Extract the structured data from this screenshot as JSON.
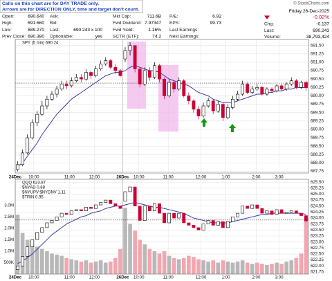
{
  "header": {
    "note": [
      "Calls on this chart are for DAY TRADE only.",
      "Arrows are for DIRECTION ONLY, time and target don't count."
    ],
    "copyright": "© StockCharts.com",
    "columns": [
      [
        {
          "label": "Open:",
          "value": "690.640"
        },
        {
          "label": "High:",
          "value": "691.660"
        },
        {
          "label": "Low:",
          "value": "689.270"
        },
        {
          "label": "Prev Close:",
          "value": "690.380"
        }
      ],
      [
        {
          "label": "Ask:"
        },
        {
          "label": "Bid:"
        },
        {
          "label": "Last:",
          "value": "690.243 x 100"
        },
        {
          "label": "Optionable:",
          "value": "yes"
        }
      ],
      [
        {
          "label": "Mkt Cap:",
          "value": "711.6B"
        },
        {
          "label": "Fwd Dividend:",
          "value": "7.97347"
        },
        {
          "label": "Fwd Yield:",
          "value": "1.16%"
        },
        {
          "label": "SCTR (ETF):",
          "value": "74.2"
        }
      ],
      [
        {
          "label": "P/E:",
          "value": "6.92"
        },
        {
          "label": "EPS:",
          "value": "99.73"
        },
        {
          "label": "Last Earnings:"
        },
        {
          "label": "Next Earnings:"
        }
      ]
    ],
    "date": "Friday 26-Dec-2025",
    "pct_change": "-0.02%",
    "summary": [
      {
        "label": "Chg:",
        "value": "-0.137"
      },
      {
        "label": "Last:",
        "value": "690.243"
      },
      {
        "label": "Volume:",
        "value": "38,793,424"
      }
    ]
  },
  "chart_data": [
    {
      "type": "candlestick",
      "legend": [
        "SPY (5 min) 690.24"
      ],
      "grid": true,
      "up_color": "#000000",
      "down_color": "#cc0033",
      "xlim": [
        -0.5,
        59.5
      ],
      "xticks": [
        {
          "value": -0.5,
          "label": "24Dec"
        },
        {
          "value": 3.3,
          "label": "10:00"
        },
        {
          "value": 10.6,
          "label": "11:00"
        },
        {
          "value": 15.7,
          "label": "12:00"
        },
        {
          "value": 21.5,
          "label": "26Dec"
        },
        {
          "value": 24.8,
          "label": "10:00"
        },
        {
          "value": 30.8,
          "label": "11:00"
        },
        {
          "value": 37.5,
          "label": "12:00"
        },
        {
          "value": 42.6,
          "label": "1:00"
        },
        {
          "value": 48.8,
          "label": "2:00"
        },
        {
          "value": 53.5,
          "label": "3:00"
        }
      ],
      "ylim": [
        687.7,
        691.68
      ],
      "yticks": [
        {
          "value": 691.5,
          "label": "691.50"
        },
        691.25,
        {
          "value": 691,
          "label": "691.00"
        },
        690.75,
        {
          "value": 690.5,
          "label": "690.50"
        },
        690.25,
        {
          "value": 690,
          "label": "690.00"
        },
        689.75,
        {
          "value": 689.5,
          "label": "689.50"
        },
        689.25,
        {
          "value": 689,
          "label": "689.00"
        },
        688.75,
        {
          "value": 688.5,
          "label": "688.50"
        },
        688.25,
        {
          "value": 688,
          "label": "688.00"
        },
        687.75
      ],
      "hline": 690.38,
      "open": [
        687.8,
        687.95,
        688.3,
        688.75,
        689.2,
        689.45,
        689.7,
        689.9,
        690.05,
        690.2,
        690.35,
        690.3,
        690.45,
        690.55,
        690.5,
        690.7,
        690.6,
        690.8,
        690.95,
        691.05,
        690.85,
        690.75,
        691.1,
        691.35,
        691.5,
        690.8,
        690.35,
        690.75,
        690.55,
        690.9,
        690.5,
        690,
        690.4,
        690.2,
        690.45,
        690,
        689.85,
        689.6,
        689.4,
        689.7,
        689.85,
        689.55,
        689.75,
        689.35,
        689.65,
        689.9,
        690.05,
        690.35,
        690.1,
        690.2,
        690.25,
        690.05,
        690.2,
        690.15,
        690.3,
        690.2,
        690.35,
        690.45,
        690.25,
        690.4
      ],
      "high": [
        688.05,
        688.4,
        688.85,
        689.3,
        689.55,
        689.85,
        690,
        690.15,
        690.3,
        690.45,
        690.45,
        690.55,
        690.65,
        690.65,
        690.8,
        690.75,
        690.9,
        691.05,
        691.15,
        691.1,
        690.95,
        690.8,
        691.45,
        691.6,
        691.5,
        690.85,
        690.85,
        690.85,
        691,
        690.95,
        690.55,
        690.5,
        690.45,
        690.55,
        690.5,
        690.1,
        689.9,
        689.7,
        689.8,
        689.95,
        689.9,
        689.85,
        689.8,
        689.75,
        690,
        690.15,
        690.45,
        690.4,
        690.3,
        690.35,
        690.3,
        690.25,
        690.25,
        690.35,
        690.35,
        690.4,
        690.55,
        690.5,
        690.45,
        690.45
      ],
      "low": [
        687.75,
        687.9,
        688.25,
        688.7,
        689.1,
        689.4,
        689.6,
        689.85,
        689.95,
        690.15,
        690.2,
        690.25,
        690.4,
        690.4,
        690.45,
        690.5,
        690.55,
        690.75,
        690.9,
        690.8,
        690.65,
        690.55,
        691,
        691.2,
        690.7,
        690.25,
        690.3,
        690.45,
        690.5,
        690.4,
        689.9,
        689.95,
        690.1,
        690.15,
        689.95,
        689.75,
        689.5,
        689.3,
        689.35,
        689.65,
        689.45,
        689.5,
        689.25,
        689.3,
        689.6,
        689.85,
        690,
        690.05,
        690.05,
        690.15,
        690,
        690,
        690.1,
        690.1,
        690.15,
        690.15,
        690.3,
        690.2,
        690.2,
        690.15
      ],
      "close": [
        687.95,
        688.3,
        688.75,
        689.2,
        689.45,
        689.7,
        689.9,
        690.05,
        690.2,
        690.35,
        690.3,
        690.45,
        690.55,
        690.5,
        690.7,
        690.6,
        690.8,
        690.95,
        691.05,
        690.85,
        690.75,
        690.6,
        691.35,
        691.5,
        690.8,
        690.35,
        690.75,
        690.55,
        690.9,
        690.5,
        690,
        690.4,
        690.2,
        690.45,
        690,
        689.85,
        689.6,
        689.4,
        689.7,
        689.85,
        689.55,
        689.75,
        689.35,
        689.65,
        689.9,
        690.05,
        690.35,
        690.1,
        690.2,
        690.25,
        690.05,
        690.2,
        690.15,
        690.3,
        690.2,
        690.35,
        690.45,
        690.25,
        690.4,
        690.24
      ],
      "ma": {
        "color": "#3a3aa8",
        "values": [
          687.9,
          688.0,
          688.2,
          688.4,
          688.6,
          688.85,
          689.05,
          689.25,
          689.45,
          689.6,
          689.75,
          689.9,
          690.0,
          690.1,
          690.2,
          690.3,
          690.4,
          690.5,
          690.6,
          690.65,
          690.7,
          690.7,
          690.75,
          690.85,
          690.9,
          690.85,
          690.8,
          690.75,
          690.75,
          690.7,
          690.6,
          690.5,
          690.45,
          690.4,
          690.35,
          690.3,
          690.2,
          690.1,
          690.05,
          690.0,
          689.9,
          689.85,
          689.8,
          689.8,
          689.8,
          689.85,
          689.9,
          689.95,
          690.0,
          690.05,
          690.05,
          690.1,
          690.1,
          690.15,
          690.15,
          690.2,
          690.2,
          690.25,
          690.25,
          690.25
        ]
      }
    },
    {
      "type": "candlestick",
      "legend": [
        "QQQ 623.87",
        "$NYAD 0.88",
        "$NYUPV:$NYDNV 1.11",
        "$TRIN 0.95"
      ],
      "grid": true,
      "up_color": "#000000",
      "down_color": "#cc0033",
      "volume_up_color": "#b8b8b8",
      "volume_down_color": "#f2a7b0",
      "xlim": [
        -0.5,
        59.5
      ],
      "xticks": [
        {
          "value": -0.5,
          "label": "24Dec"
        },
        {
          "value": 3.3,
          "label": "10:00"
        },
        {
          "value": 10.6,
          "label": "11:00"
        },
        {
          "value": 15.7,
          "label": "12:00"
        },
        {
          "value": 21.5,
          "label": "26Dec"
        },
        {
          "value": 24.8,
          "label": "10:00"
        },
        {
          "value": 30.8,
          "label": "11:00"
        },
        {
          "value": 37.5,
          "label": "12:00"
        },
        {
          "value": 42.6,
          "label": "1:00"
        },
        {
          "value": 48.8,
          "label": "2:00"
        },
        {
          "value": 53.5,
          "label": "3:00"
        }
      ],
      "ylim": [
        621.66,
        625.62
      ],
      "yticks": [
        {
          "value": 625.5,
          "label": "625.50"
        },
        625.25,
        {
          "value": 625,
          "label": "625.00"
        },
        624.75,
        {
          "value": 624.5,
          "label": "624.50"
        },
        624.25,
        {
          "value": 624,
          "label": "624.00"
        },
        623.75,
        {
          "value": 623.5,
          "label": "623.50"
        },
        623.25,
        {
          "value": 623,
          "label": "623.00"
        },
        622.75,
        {
          "value": 622.5,
          "label": "622.50"
        },
        622.25,
        {
          "value": 622,
          "label": "622.00"
        },
        621.75
      ],
      "y2lim": [
        0,
        4150000
      ],
      "y2ticks": [
        {
          "value": 500000,
          "label": "500K"
        },
        {
          "value": 1000000,
          "label": "1.0M"
        },
        {
          "value": 1500000,
          "label": "1.5M"
        },
        {
          "value": 2000000,
          "label": "2.0M"
        },
        {
          "value": 2500000,
          "label": "2.5M"
        },
        {
          "value": 3000000,
          "label": "3.0M"
        }
      ],
      "hline": 623.92,
      "open": [
        621.85,
        622.0,
        622.4,
        622.8,
        623.1,
        623.4,
        623.6,
        623.8,
        623.9,
        624.05,
        624.2,
        624.15,
        624.3,
        624.35,
        624.3,
        624.45,
        624.4,
        624.55,
        624.65,
        624.75,
        624.6,
        624.5,
        624.7,
        625.1,
        625.3,
        624.5,
        623.9,
        624.5,
        624.3,
        624.6,
        624.2,
        623.8,
        624.2,
        624.0,
        624.2,
        623.8,
        623.7,
        623.6,
        623.5,
        623.75,
        623.9,
        623.7,
        623.85,
        623.6,
        623.85,
        624.05,
        624.2,
        624.5,
        624.4,
        624.55,
        624.4,
        624.2,
        624.3,
        624.15,
        624.35,
        624.2,
        624.25,
        624.3,
        624.2,
        624.1
      ],
      "close": [
        622.0,
        622.4,
        622.8,
        623.1,
        623.4,
        623.6,
        623.8,
        623.9,
        624.05,
        624.2,
        624.15,
        624.3,
        624.35,
        624.3,
        624.45,
        624.4,
        624.55,
        624.65,
        624.75,
        624.6,
        624.5,
        624.4,
        625.1,
        625.3,
        624.5,
        623.9,
        624.5,
        624.3,
        624.6,
        624.2,
        623.8,
        624.2,
        624.0,
        624.2,
        623.8,
        623.7,
        623.6,
        623.5,
        623.75,
        623.9,
        623.7,
        623.85,
        623.6,
        623.85,
        624.05,
        624.2,
        624.5,
        624.4,
        624.55,
        624.4,
        624.2,
        624.3,
        624.15,
        624.35,
        624.2,
        624.25,
        624.3,
        624.2,
        624.1,
        623.87
      ],
      "volume": {
        "axis": "y2",
        "values": [
          2600000,
          1800000,
          1500000,
          1300000,
          1200000,
          1100000,
          1000000,
          900000,
          850000,
          800000,
          700000,
          650000,
          600000,
          550000,
          600000,
          500000,
          550000,
          600000,
          500000,
          550000,
          700000,
          1100000,
          2900000,
          2200000,
          1900000,
          1500000,
          1300000,
          1100000,
          1000000,
          900000,
          1000000,
          800000,
          700000,
          650000,
          700000,
          800000,
          750000,
          650000,
          600000,
          550000,
          600000,
          500000,
          600000,
          550000,
          500000,
          550000,
          600000,
          500000,
          450000,
          500000,
          450000,
          400000,
          450000,
          500000,
          450000,
          550000,
          600000,
          700000,
          900000,
          2300000
        ]
      },
      "ma": {
        "color": "#3a3aa8",
        "values": [
          622.1,
          622.2,
          622.35,
          622.5,
          622.7,
          622.9,
          623.1,
          623.3,
          623.45,
          623.6,
          623.75,
          623.85,
          623.95,
          624.05,
          624.1,
          624.2,
          624.25,
          624.3,
          624.4,
          624.45,
          624.5,
          624.5,
          624.55,
          624.6,
          624.65,
          624.6,
          624.55,
          624.5,
          624.45,
          624.45,
          624.4,
          624.35,
          624.3,
          624.25,
          624.2,
          624.1,
          624.0,
          623.95,
          623.9,
          623.85,
          623.8,
          623.8,
          623.8,
          623.8,
          623.85,
          623.9,
          623.95,
          624.0,
          624.05,
          624.1,
          624.15,
          624.15,
          624.2,
          624.2,
          624.2,
          624.2,
          624.2,
          624.2,
          624.2,
          624.15
        ]
      }
    }
  ]
}
